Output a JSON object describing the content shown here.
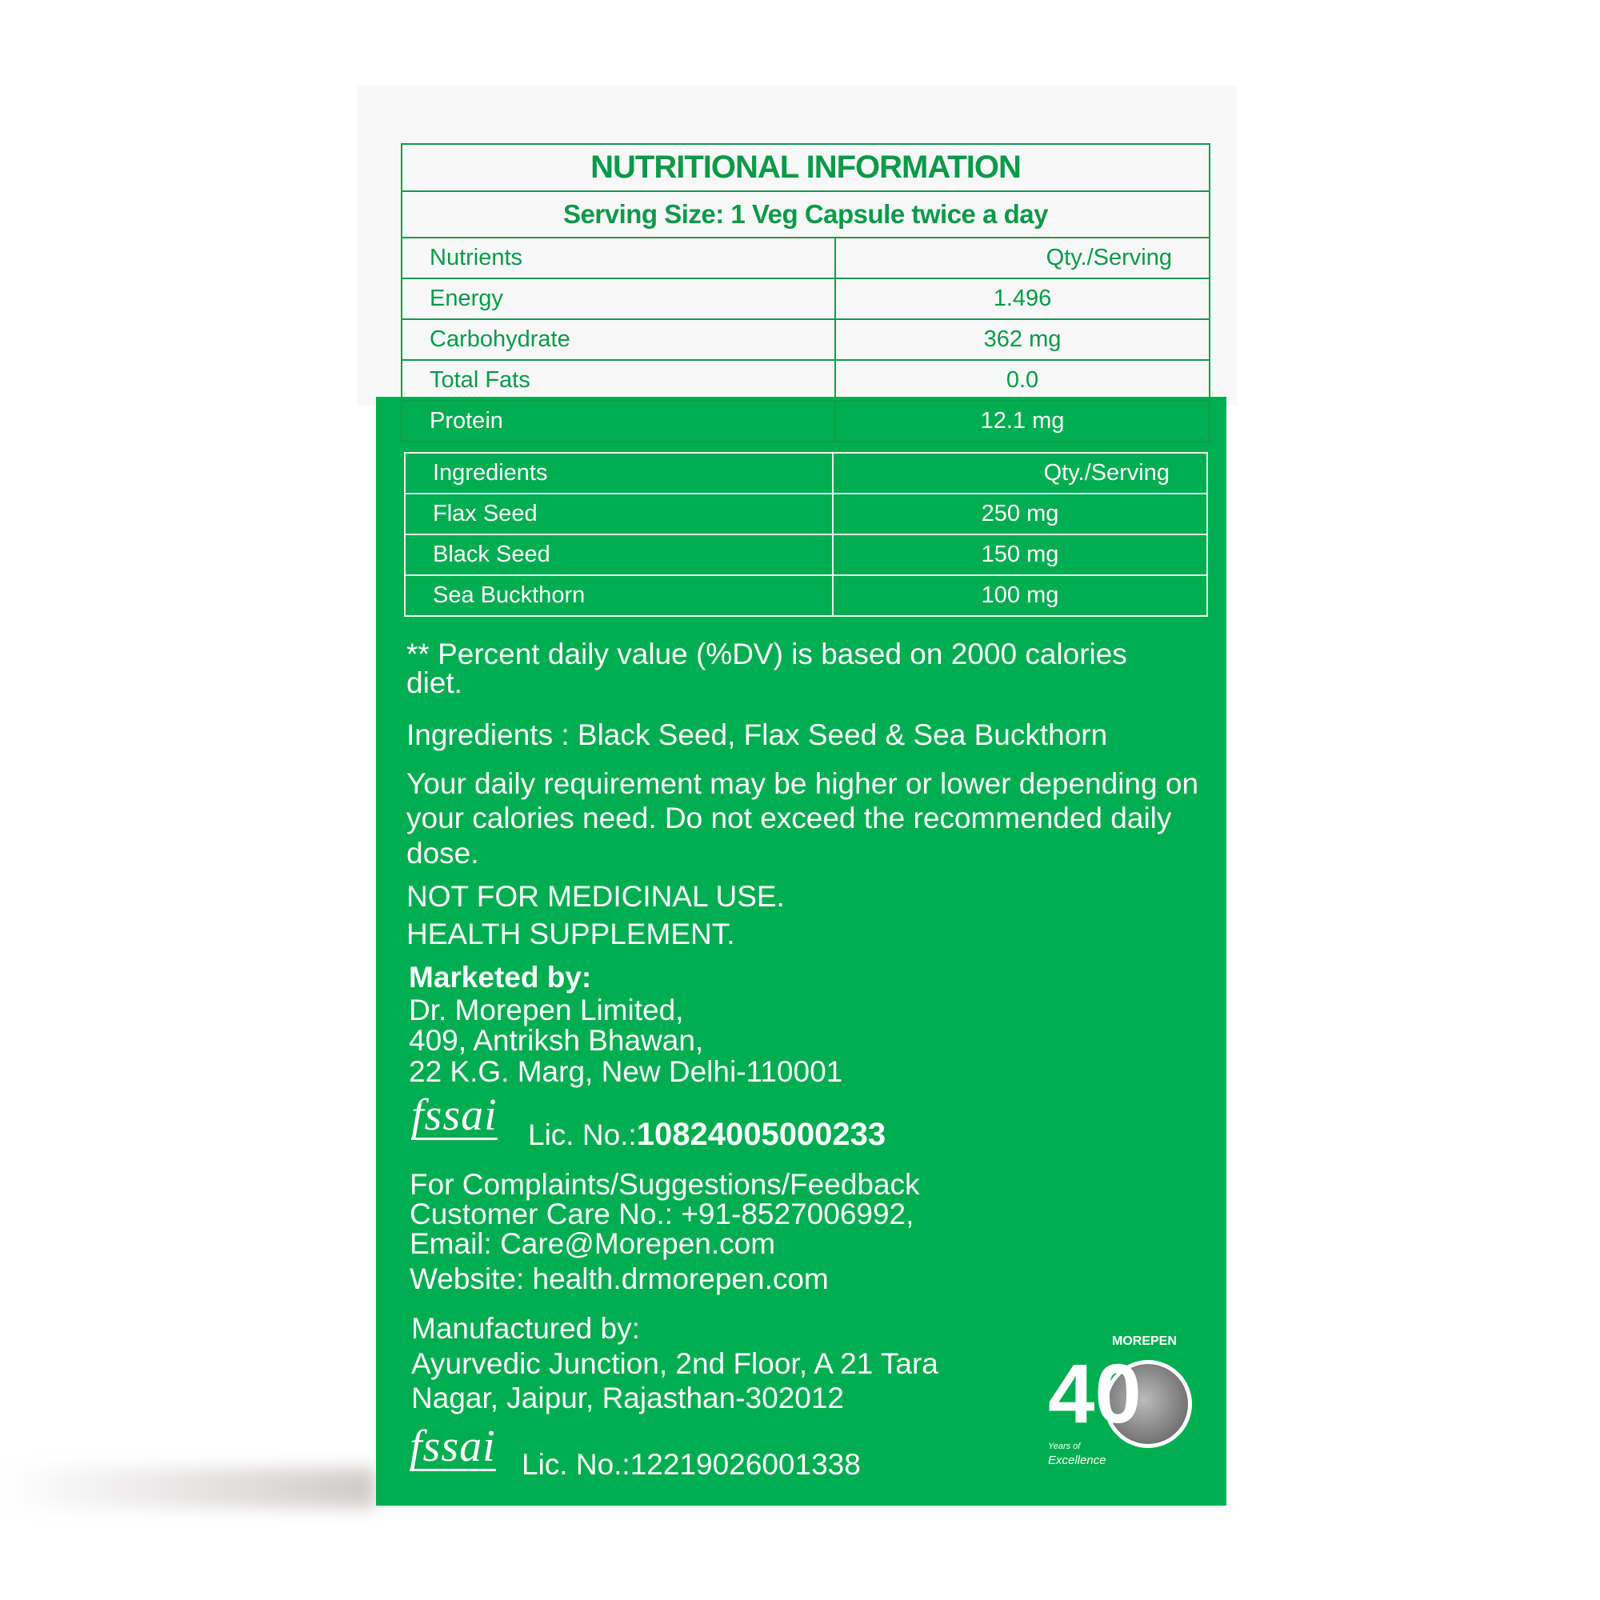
{
  "nutrition_table": {
    "title": "NUTRITIONAL INFORMATION",
    "serving_size": "Serving Size: 1 Veg Capsule twice a day",
    "headers": [
      "Nutrients",
      "Qty./Serving"
    ],
    "rows": [
      {
        "name": "Energy",
        "qty": "1.496"
      },
      {
        "name": "Carbohydrate",
        "qty": "362 mg"
      },
      {
        "name": "Total Fats",
        "qty": "0.0"
      },
      {
        "name": "Protein",
        "qty": "12.1 mg"
      }
    ]
  },
  "ingredients_table": {
    "headers": [
      "Ingredients",
      "Qty./Serving"
    ],
    "rows": [
      {
        "name": "Flax Seed",
        "qty": "250 mg"
      },
      {
        "name": "Black Seed",
        "qty": "150 mg"
      },
      {
        "name": "Sea Buckthorn",
        "qty": "100 mg"
      }
    ]
  },
  "notes": {
    "dv": "** Percent daily value (%DV) is based on 2000 calories diet.",
    "ingredients": "Ingredients : Black Seed, Flax Seed & Sea Buckthorn",
    "requirement": "Your daily requirement may be higher or lower depending on your calories need. Do not exceed the recommended daily dose.",
    "not_medicinal": "NOT FOR MEDICINAL USE.",
    "supplement": "HEALTH SUPPLEMENT."
  },
  "marketer": {
    "label": "Marketed by:",
    "lines": [
      "Dr. Morepen Limited,",
      "409, Antriksh Bhawan,",
      "22 K.G. Marg, New Delhi-110001"
    ],
    "fssai_logo": "fssai",
    "lic_label": "Lic. No.:",
    "lic_no": "10824005000233"
  },
  "contact": {
    "lines": [
      "For Complaints/Suggestions/Feedback",
      "Customer Care No.: +91-8527006992,",
      "Email: Care@Morepen.com"
    ],
    "website": "Website: health.drmorepen.com"
  },
  "manufacturer": {
    "label": "Manufactured by:",
    "lines": [
      "Ayurvedic Junction, 2nd Floor, A 21 Tara",
      "Nagar, Jaipur, Rajasthan-302012"
    ],
    "fssai_logo": "fssai",
    "lic": "Lic. No.:12219026001338"
  },
  "badge": {
    "brand": "MOREPEN",
    "number": "40",
    "tagline1": "Years of",
    "tagline2": "Excellence"
  },
  "colors": {
    "green": "#00ad50",
    "text_green": "#0a9a48"
  }
}
